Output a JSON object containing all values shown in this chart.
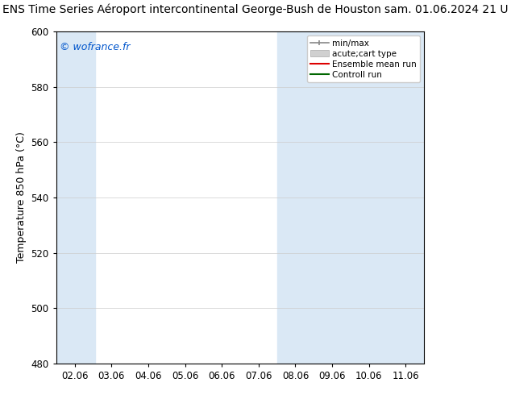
{
  "title_left": "ENS Time Series Aéroport intercontinental George-Bush de Houston",
  "title_right": "sam. 01.06.2024 21 U",
  "ylabel": "Temperature 850 hPa (°C)",
  "watermark": "© wofrance.fr",
  "watermark_color": "#0055cc",
  "ylim": [
    480,
    600
  ],
  "yticks": [
    480,
    500,
    520,
    540,
    560,
    580,
    600
  ],
  "xtick_labels": [
    "02.06",
    "03.06",
    "04.06",
    "05.06",
    "06.06",
    "07.06",
    "08.06",
    "09.06",
    "10.06",
    "11.06"
  ],
  "band_color": "#dae8f5",
  "background_color": "#ffffff",
  "title_fontsize": 10,
  "tick_fontsize": 8.5,
  "ylabel_fontsize": 9
}
